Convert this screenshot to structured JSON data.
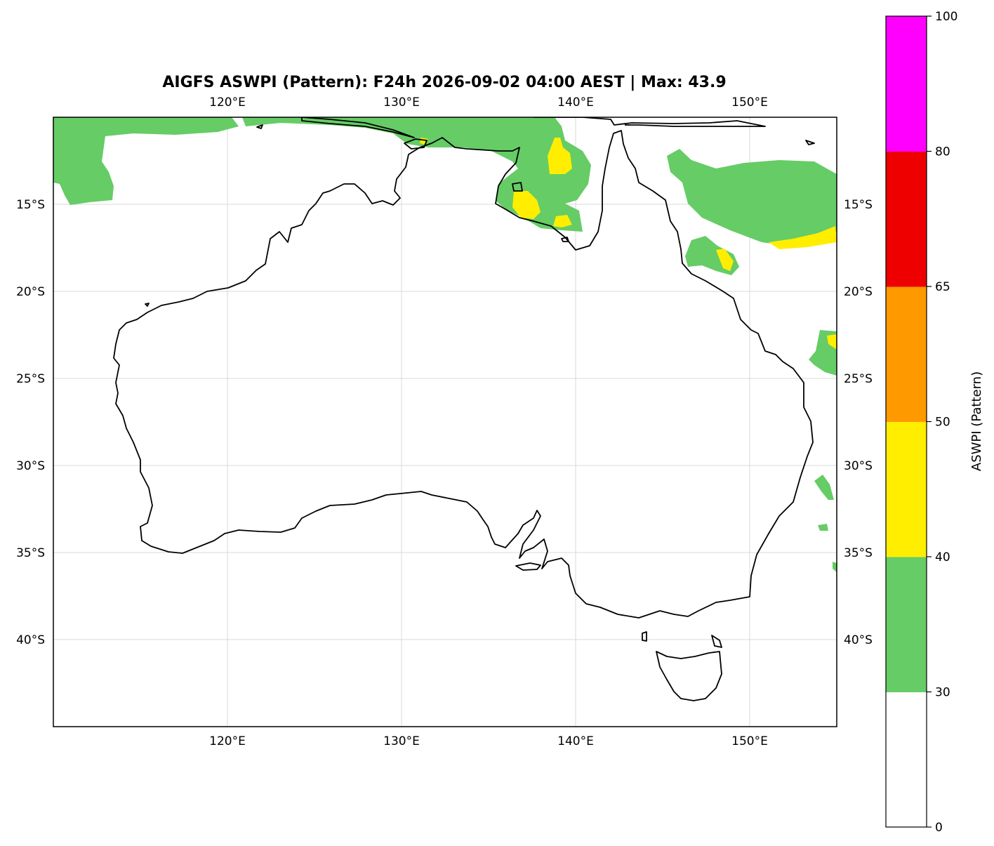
{
  "title": "AIGFS ASWPI (Pattern): F24h 2026-09-02 04:00 AEST | Max: 43.9",
  "map": {
    "lon_range": [
      110,
      155
    ],
    "lat_range": [
      -45,
      -10
    ],
    "lon_ticks": [
      {
        "value": 120,
        "label": "120°E"
      },
      {
        "value": 130,
        "label": "130°E"
      },
      {
        "value": 140,
        "label": "140°E"
      },
      {
        "value": 150,
        "label": "150°E"
      }
    ],
    "lat_ticks": [
      {
        "value": -15,
        "label": "15°S"
      },
      {
        "value": -20,
        "label": "20°S"
      },
      {
        "value": -25,
        "label": "25°S"
      },
      {
        "value": -30,
        "label": "30°S"
      },
      {
        "value": -35,
        "label": "35°S"
      },
      {
        "value": -40,
        "label": "40°S"
      }
    ]
  },
  "colorbar": {
    "label": "ASWPI (Pattern)",
    "bins": [
      {
        "from": 0,
        "to": 30,
        "color": "#ffffff"
      },
      {
        "from": 30,
        "to": 40,
        "color": "#66cc66"
      },
      {
        "from": 40,
        "to": 50,
        "color": "#ffee00"
      },
      {
        "from": 50,
        "to": 65,
        "color": "#ff9900"
      },
      {
        "from": 65,
        "to": 80,
        "color": "#ee0000"
      },
      {
        "from": 80,
        "to": 100,
        "color": "#ff00ff"
      }
    ],
    "tick_labels": [
      "0",
      "30",
      "40",
      "50",
      "65",
      "80",
      "100"
    ]
  },
  "colors": {
    "green": "#66cc66",
    "yellow": "#ffee00"
  }
}
